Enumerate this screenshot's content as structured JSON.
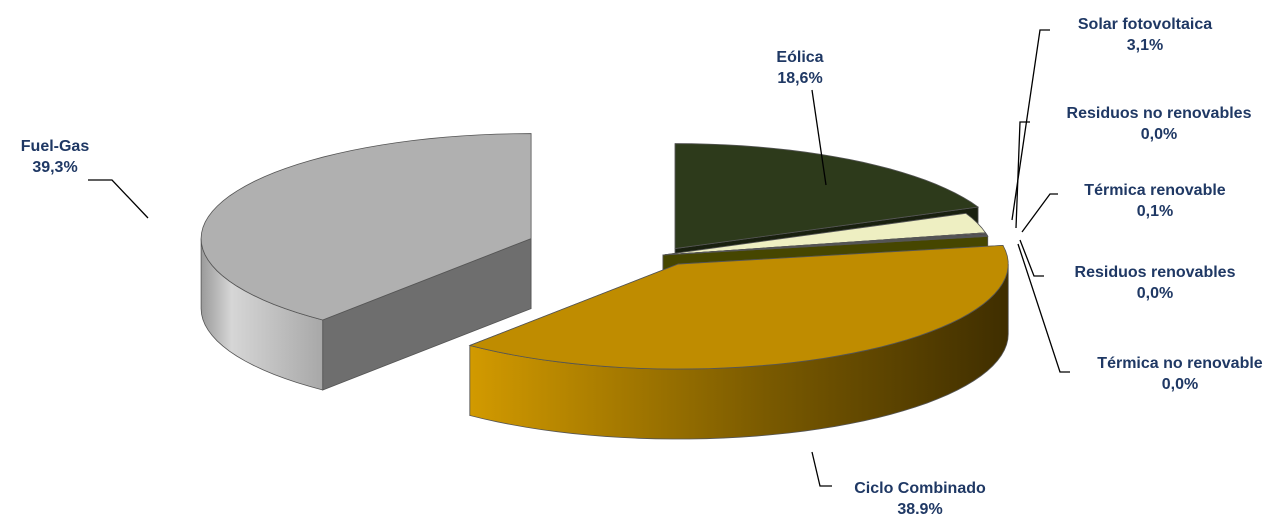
{
  "chart_data": {
    "type": "pie",
    "title": "",
    "slices": [
      {
        "name": "Eólica",
        "label": "Eólica",
        "value_label": "18,6%",
        "value": 18.6,
        "color": "#2d3a1b"
      },
      {
        "name": "Solar fotovoltaica",
        "label": "Solar fotovoltaica",
        "value_label": "3,1%",
        "value": 3.1,
        "color": "#eeefc2"
      },
      {
        "name": "Residuos no renovables",
        "label": "Residuos no renovables",
        "value_label": "0,0%",
        "value": 0.0,
        "color": "#999999"
      },
      {
        "name": "Térmica renovable",
        "label": "Térmica renovable",
        "value_label": "0,1%",
        "value": 0.1,
        "color": "#5c0000"
      },
      {
        "name": "Residuos renovables",
        "label": "Residuos renovables",
        "value_label": "0,0%",
        "value": 0.0,
        "color": "#336699"
      },
      {
        "name": "Térmica no renovable",
        "label": "Térmica no renovable",
        "value_label": "0,0%",
        "value": 0.0,
        "color": "#808000"
      },
      {
        "name": "Ciclo Combinado",
        "label": "Ciclo Combinado",
        "value_label": "38.9%",
        "value": 38.9,
        "color": "#bf8c00"
      },
      {
        "name": "Fuel-Gas",
        "label": "Fuel-Gas",
        "value_label": "39,3%",
        "value": 39.3,
        "color": "#b0b0b0"
      }
    ],
    "legend": "none",
    "style": "3d-exploded-pie",
    "label_color": "#1f3864"
  }
}
